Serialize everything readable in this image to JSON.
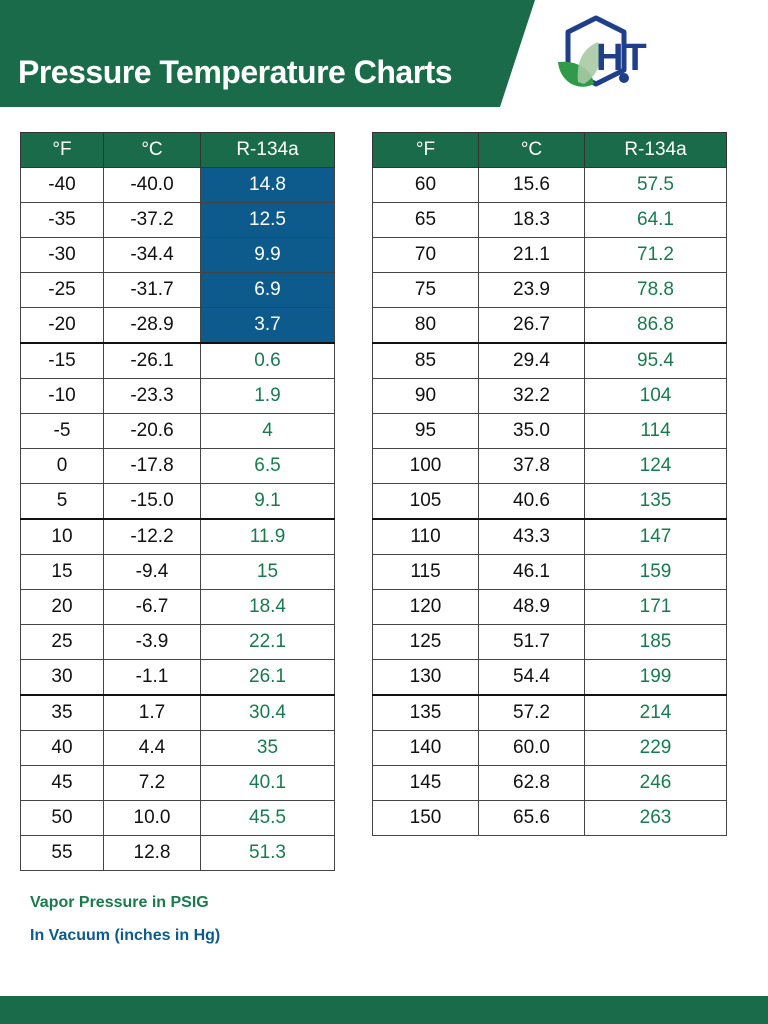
{
  "header": {
    "title": "Pressure Temperature Charts",
    "logo_text": "HT"
  },
  "colors": {
    "brand_green": "#1a6b4a",
    "vacuum_blue": "#0d5b8c",
    "psig_green": "#1a7a4f"
  },
  "table_left": {
    "headers": [
      "°F",
      "°C",
      "R-134a"
    ],
    "rows": [
      {
        "f": "-40",
        "c": "-40.0",
        "p": "14.8",
        "vacuum": true
      },
      {
        "f": "-35",
        "c": "-37.2",
        "p": "12.5",
        "vacuum": true
      },
      {
        "f": "-30",
        "c": "-34.4",
        "p": "9.9",
        "vacuum": true
      },
      {
        "f": "-25",
        "c": "-31.7",
        "p": "6.9",
        "vacuum": true
      },
      {
        "f": "-20",
        "c": "-28.9",
        "p": "3.7",
        "vacuum": true
      },
      {
        "f": "-15",
        "c": "-26.1",
        "p": "0.6",
        "vacuum": false
      },
      {
        "f": "-10",
        "c": "-23.3",
        "p": "1.9",
        "vacuum": false
      },
      {
        "f": "-5",
        "c": "-20.6",
        "p": "4",
        "vacuum": false
      },
      {
        "f": "0",
        "c": "-17.8",
        "p": "6.5",
        "vacuum": false
      },
      {
        "f": "5",
        "c": "-15.0",
        "p": "9.1",
        "vacuum": false
      },
      {
        "f": "10",
        "c": "-12.2",
        "p": "11.9",
        "vacuum": false
      },
      {
        "f": "15",
        "c": "-9.4",
        "p": "15",
        "vacuum": false
      },
      {
        "f": "20",
        "c": "-6.7",
        "p": "18.4",
        "vacuum": false
      },
      {
        "f": "25",
        "c": "-3.9",
        "p": "22.1",
        "vacuum": false
      },
      {
        "f": "30",
        "c": "-1.1",
        "p": "26.1",
        "vacuum": false
      },
      {
        "f": "35",
        "c": "1.7",
        "p": "30.4",
        "vacuum": false
      },
      {
        "f": "40",
        "c": "4.4",
        "p": "35",
        "vacuum": false
      },
      {
        "f": "45",
        "c": "7.2",
        "p": "40.1",
        "vacuum": false
      },
      {
        "f": "50",
        "c": "10.0",
        "p": "45.5",
        "vacuum": false
      },
      {
        "f": "55",
        "c": "12.8",
        "p": "51.3",
        "vacuum": false
      }
    ]
  },
  "table_right": {
    "headers": [
      "°F",
      "°C",
      "R-134a"
    ],
    "rows": [
      {
        "f": "60",
        "c": "15.6",
        "p": "57.5",
        "vacuum": false
      },
      {
        "f": "65",
        "c": "18.3",
        "p": "64.1",
        "vacuum": false
      },
      {
        "f": "70",
        "c": "21.1",
        "p": "71.2",
        "vacuum": false
      },
      {
        "f": "75",
        "c": "23.9",
        "p": "78.8",
        "vacuum": false
      },
      {
        "f": "80",
        "c": "26.7",
        "p": "86.8",
        "vacuum": false
      },
      {
        "f": "85",
        "c": "29.4",
        "p": "95.4",
        "vacuum": false
      },
      {
        "f": "90",
        "c": "32.2",
        "p": "104",
        "vacuum": false
      },
      {
        "f": "95",
        "c": "35.0",
        "p": "114",
        "vacuum": false
      },
      {
        "f": "100",
        "c": "37.8",
        "p": "124",
        "vacuum": false
      },
      {
        "f": "105",
        "c": "40.6",
        "p": "135",
        "vacuum": false
      },
      {
        "f": "110",
        "c": "43.3",
        "p": "147",
        "vacuum": false
      },
      {
        "f": "115",
        "c": "46.1",
        "p": "159",
        "vacuum": false
      },
      {
        "f": "120",
        "c": "48.9",
        "p": "171",
        "vacuum": false
      },
      {
        "f": "125",
        "c": "51.7",
        "p": "185",
        "vacuum": false
      },
      {
        "f": "130",
        "c": "54.4",
        "p": "199",
        "vacuum": false
      },
      {
        "f": "135",
        "c": "57.2",
        "p": "214",
        "vacuum": false
      },
      {
        "f": "140",
        "c": "60.0",
        "p": "229",
        "vacuum": false
      },
      {
        "f": "145",
        "c": "62.8",
        "p": "246",
        "vacuum": false
      },
      {
        "f": "150",
        "c": "65.6",
        "p": "263",
        "vacuum": false
      }
    ]
  },
  "legend": {
    "psig_note": "Vapor Pressure in PSIG",
    "vacuum_note": "In Vacuum (inches in Hg)"
  }
}
